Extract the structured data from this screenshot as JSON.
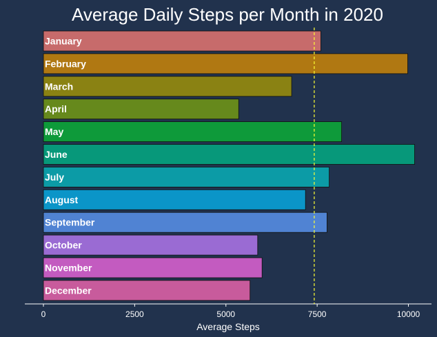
{
  "chart_data": {
    "type": "bar",
    "orientation": "horizontal",
    "title": "Average Daily Steps per Month in 2020",
    "xlabel": "Average Steps",
    "ylabel": "",
    "xlim": [
      0,
      10500
    ],
    "xticks": [
      0,
      2500,
      5000,
      7500,
      10000
    ],
    "grid": false,
    "categories": [
      "January",
      "February",
      "March",
      "April",
      "May",
      "June",
      "July",
      "August",
      "September",
      "October",
      "November",
      "December"
    ],
    "values": [
      7600,
      9980,
      6800,
      5350,
      8170,
      10170,
      7830,
      7180,
      7770,
      5870,
      5990,
      5660
    ],
    "reference_line": {
      "style": "dashed",
      "orientation": "vertical",
      "value": 7420,
      "color": "#ffff33"
    },
    "colors": [
      "#c76b6b",
      "#b07812",
      "#8a8213",
      "#66891c",
      "#0e9a3a",
      "#07987a",
      "#0c9ba6",
      "#0b95c8",
      "#5083d3",
      "#9a6bd3",
      "#c35bc0",
      "#c85b9c"
    ],
    "background": "#21324d",
    "axis_color": "#ffffff"
  }
}
